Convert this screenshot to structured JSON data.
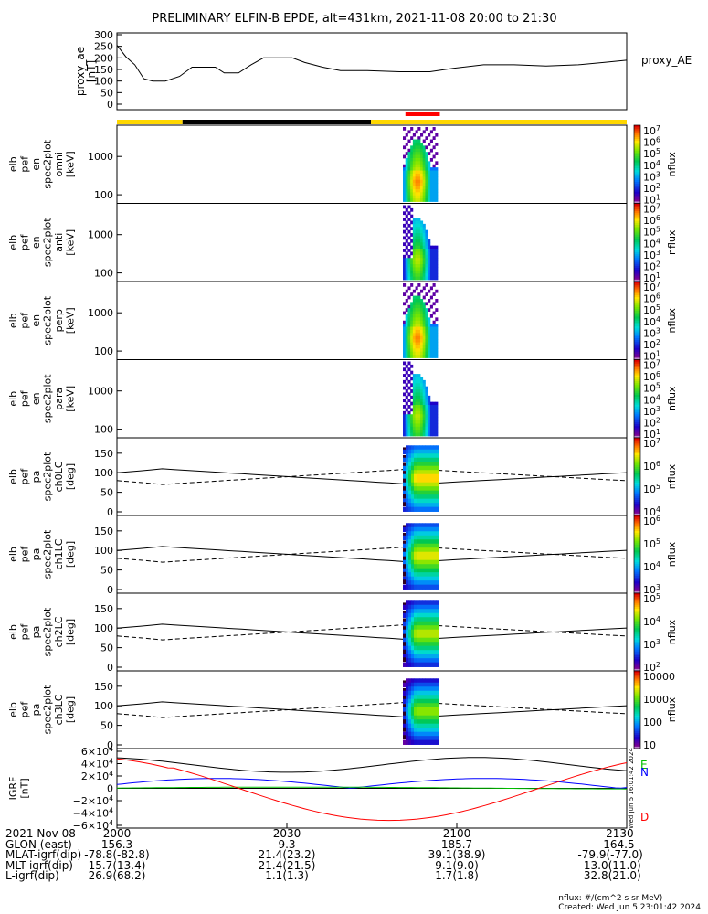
{
  "title": "PRELIMINARY ELFIN-B EPDE, alt=431km, 2021-11-08 20:00 to 21:30",
  "top_panel": {
    "ylabel": [
      "proxy_ae",
      "[nT]"
    ],
    "yticks": [
      "300",
      "250",
      "200",
      "150",
      "100",
      "50",
      "0"
    ],
    "ytick_values": [
      300,
      250,
      200,
      150,
      100,
      50,
      0
    ],
    "legend": "proxy_AE",
    "series": [
      [
        0,
        255
      ],
      [
        5,
        205
      ],
      [
        10,
        170
      ],
      [
        15,
        110
      ],
      [
        20,
        100
      ],
      [
        27,
        100
      ],
      [
        35,
        120
      ],
      [
        42,
        160
      ],
      [
        55,
        160
      ],
      [
        60,
        135
      ],
      [
        68,
        135
      ],
      [
        75,
        170
      ],
      [
        82,
        200
      ],
      [
        98,
        200
      ],
      [
        105,
        180
      ],
      [
        115,
        160
      ],
      [
        125,
        145
      ],
      [
        140,
        145
      ],
      [
        158,
        140
      ],
      [
        175,
        140
      ],
      [
        188,
        155
      ],
      [
        205,
        170
      ],
      [
        222,
        170
      ],
      [
        240,
        165
      ],
      [
        258,
        170
      ],
      [
        272,
        180
      ],
      [
        285,
        190
      ]
    ]
  },
  "status_bar": {
    "colors": {
      "day": "#ffd700",
      "night": "#000000",
      "science": "#ff0000"
    },
    "segments": [
      [
        "day",
        0,
        8
      ],
      [
        "night",
        8,
        31
      ],
      [
        "day",
        31,
        62.2
      ]
    ],
    "science": [
      35.2,
      39.4
    ]
  },
  "spectra": [
    {
      "ylabel": [
        "elb",
        "pef",
        "en",
        "spec2plot",
        "omni",
        "[keV]"
      ],
      "cbar_ticks": [
        "10",
        "10",
        "10",
        "10",
        "10",
        "10",
        "10"
      ],
      "cbar_exps": [
        "7",
        "6",
        "5",
        "4",
        "3",
        "2",
        "1"
      ],
      "zlabel": "nflux",
      "yticks": [
        "1000",
        "100"
      ],
      "shape": "omni"
    },
    {
      "ylabel": [
        "elb",
        "pef",
        "en",
        "spec2plot",
        "anti",
        "[keV]"
      ],
      "cbar_ticks": [
        "10",
        "10",
        "10",
        "10",
        "10",
        "10",
        "10"
      ],
      "cbar_exps": [
        "7",
        "6",
        "5",
        "4",
        "3",
        "2",
        "1"
      ],
      "zlabel": "nflux",
      "yticks": [
        "1000",
        "100"
      ],
      "shape": "anti"
    },
    {
      "ylabel": [
        "elb",
        "pef",
        "en",
        "spec2plot",
        "perp",
        "[keV]"
      ],
      "cbar_ticks": [
        "10",
        "10",
        "10",
        "10",
        "10",
        "10",
        "10"
      ],
      "cbar_exps": [
        "7",
        "6",
        "5",
        "4",
        "3",
        "2",
        "1"
      ],
      "zlabel": "nflux",
      "yticks": [
        "1000",
        "100"
      ],
      "shape": "perp"
    },
    {
      "ylabel": [
        "elb",
        "pef",
        "en",
        "spec2plot",
        "para",
        "[keV]"
      ],
      "cbar_ticks": [
        "10",
        "10",
        "10",
        "10",
        "10",
        "10",
        "10"
      ],
      "cbar_exps": [
        "7",
        "6",
        "5",
        "4",
        "3",
        "2",
        "1"
      ],
      "zlabel": "nflux",
      "yticks": [
        "1000",
        "100"
      ],
      "shape": "para"
    }
  ],
  "pitch_panels": [
    {
      "ylabel": [
        "elb",
        "pef",
        "pa",
        "spec2plot",
        "ch0LC",
        "[deg]"
      ],
      "cbar_ticks": [
        "10",
        "10",
        "10",
        "10"
      ],
      "cbar_exps": [
        "7",
        "6",
        "5",
        "4"
      ],
      "zlabel": "nflux"
    },
    {
      "ylabel": [
        "elb",
        "pef",
        "pa",
        "spec2plot",
        "ch1LC",
        "[deg]"
      ],
      "cbar_ticks": [
        "10",
        "10",
        "10",
        "10"
      ],
      "cbar_exps": [
        "6",
        "5",
        "4",
        "3"
      ],
      "zlabel": "nflux"
    },
    {
      "ylabel": [
        "elb",
        "pef",
        "pa",
        "spec2plot",
        "ch2LC",
        "[deg]"
      ],
      "cbar_ticks": [
        "10",
        "10",
        "10",
        "10"
      ],
      "cbar_exps": [
        "5",
        "4",
        "3",
        "2"
      ],
      "zlabel": "nflux"
    },
    {
      "ylabel": [
        "elb",
        "pef",
        "pa",
        "spec2plot",
        "ch3LC",
        "[deg]"
      ],
      "cbar_ticks": [
        "10000",
        "1000",
        "100",
        "10"
      ],
      "cbar_exps": [
        "",
        "",
        "",
        ""
      ],
      "zlabel": "nflux"
    }
  ],
  "pitch_yticks": [
    "150",
    "100",
    "50",
    "0"
  ],
  "igrf_panel": {
    "ylabel": [
      "IGRF",
      "[nT]"
    ],
    "yticks_mant": [
      "6×10",
      "4×10",
      "2×10",
      "0",
      "−2×10",
      "−4×10",
      "−6×10"
    ],
    "yticks_exp": [
      "4",
      "4",
      "4",
      "",
      "4",
      "4",
      "4"
    ],
    "legend": [
      {
        "label": "E",
        "color": "#00c000"
      },
      {
        "label": "N",
        "color": "#0000ff"
      },
      {
        "label": "D",
        "color": "#ff0000"
      }
    ],
    "side_text": "Wed Jun  5 16:01:42 2024"
  },
  "bottom_rows": [
    [
      "2021 Nov 08",
      "2000",
      "2030",
      "2100",
      "2130"
    ],
    [
      "GLON (east)",
      "156.3",
      "9.3",
      "185.7",
      "164.5"
    ],
    [
      "MLAT-igrf(dip)",
      "-78.8(-82.8)",
      "21.4(23.2)",
      "39.1(38.9)",
      "-79.9(-77.0)"
    ],
    [
      "MLT-igrf(dip)",
      "15.7(13.4)",
      "21.4(21.5)",
      "9.1(9.0)",
      "13.0(11.0)"
    ],
    [
      "L-igrf(dip)",
      "26.9(68.2)",
      "1.1(1.3)",
      "1.7(1.8)",
      "32.8(21.0)"
    ]
  ],
  "footer": {
    "line1": "nflux: #/(cm^2 s sr MeV)",
    "line2": "Created: Wed Jun  5 23:01:42 2024"
  },
  "chart_data": {
    "type": "heatmap",
    "title": "PRELIMINARY ELFIN-B EPDE, alt=431km, 2021-11-08 20:00 to 21:30",
    "x_ticks": [
      "2000",
      "2030",
      "2100",
      "2130"
    ],
    "x_tick_minutes": [
      0,
      30,
      60,
      90
    ],
    "x_range": [
      0,
      90
    ],
    "proxy_ae_range": [
      0,
      300
    ],
    "pitch_range": [
      0,
      180
    ],
    "energy_ticks": [
      100,
      1000
    ],
    "igrf_range": [
      -60000,
      60000
    ],
    "science_window_minutes": [
      51,
      57
    ],
    "series_names": [
      "proxy_AE",
      "E",
      "N",
      "D"
    ]
  }
}
